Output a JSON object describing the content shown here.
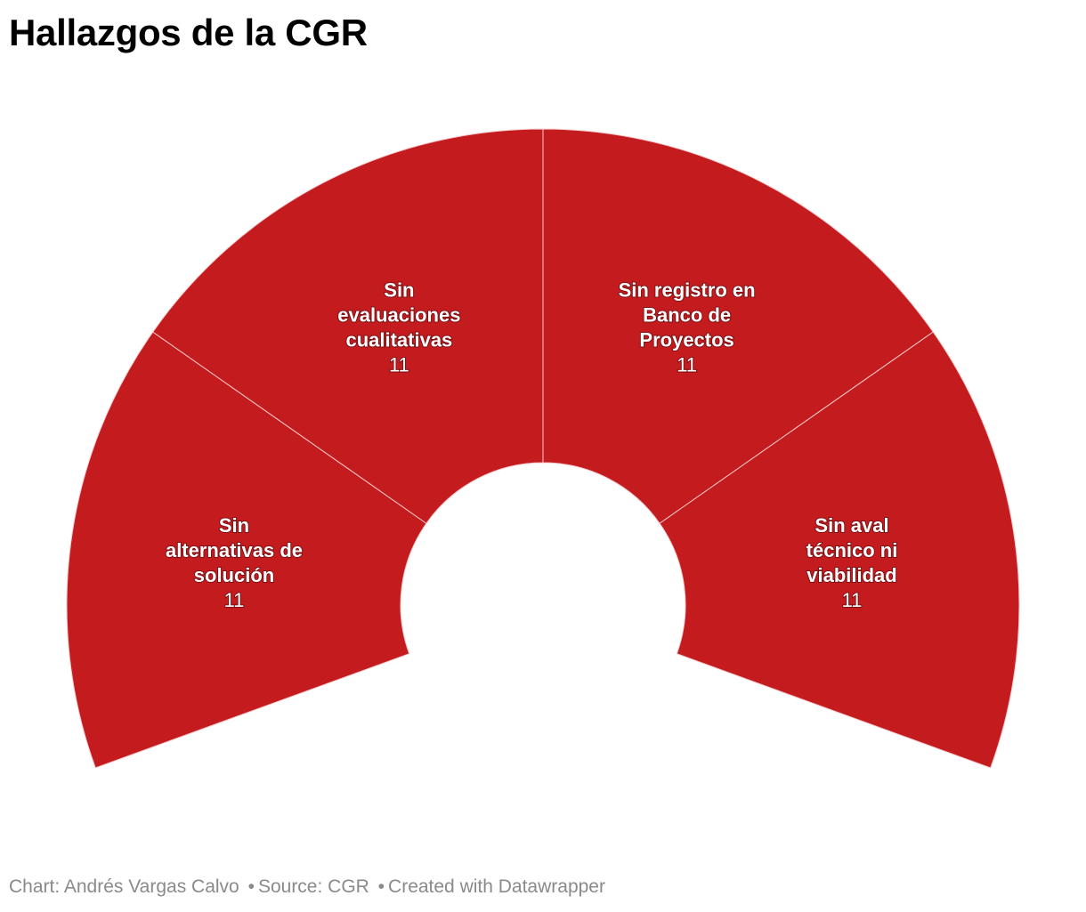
{
  "title": "Hallazgos de la CGR",
  "footer": {
    "chart_credit": "Chart: Andrés Vargas Calvo",
    "source": "Source: CGR",
    "created": "Created with Datawrapper"
  },
  "colors": {
    "slice": "#c41b1f",
    "divider": "#f2c9ca"
  },
  "chart_data": {
    "type": "pie",
    "variant": "semicircle-donut",
    "title": "Hallazgos de la CGR",
    "total_arc_degrees": 220,
    "slices": [
      {
        "label": "Sin alternativas de solución",
        "label_lines": [
          "Sin",
          "alternativas de",
          "solución"
        ],
        "value": 11,
        "value_label": "11"
      },
      {
        "label": "Sin evaluaciones cualitativas",
        "label_lines": [
          "Sin",
          "evaluaciones",
          "cualitativas"
        ],
        "value": 11,
        "value_label": "11"
      },
      {
        "label": "Sin registro en Banco de Proyectos",
        "label_lines": [
          "Sin registro en",
          "Banco de",
          "Proyectos"
        ],
        "value": 11,
        "value_label": "11"
      },
      {
        "label": "Sin aval técnico ni viabilidad",
        "label_lines": [
          "Sin aval",
          "técnico ni",
          "viabilidad"
        ],
        "value": 11,
        "value_label": "11"
      }
    ]
  }
}
